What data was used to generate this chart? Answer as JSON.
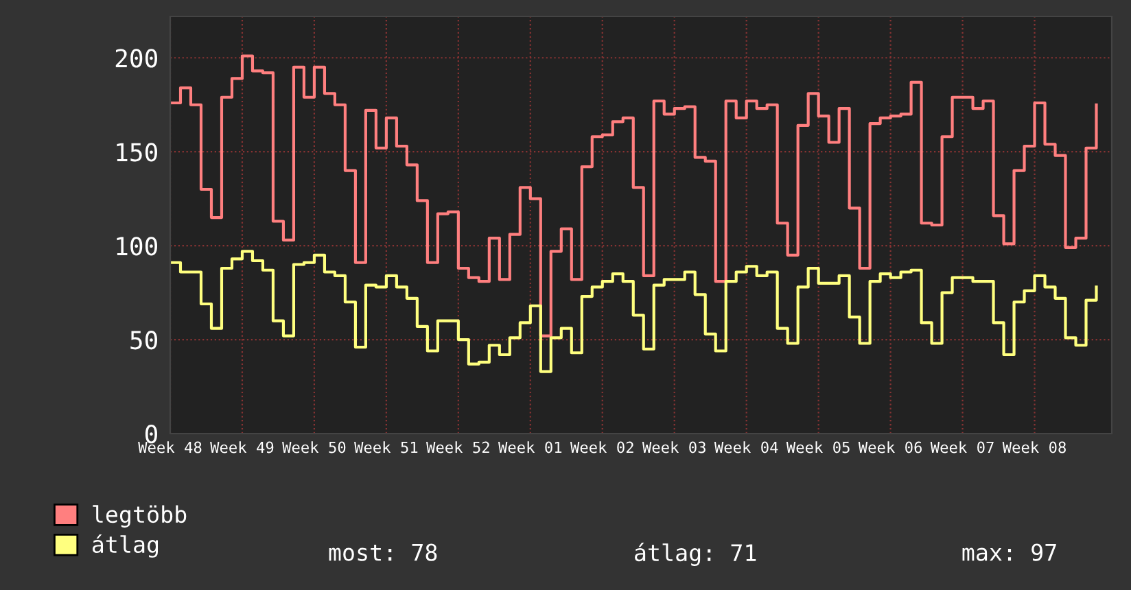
{
  "chart_data": {
    "type": "step",
    "categories": [
      "Week 48",
      null,
      null,
      null,
      null,
      null,
      null,
      "Week 49",
      null,
      null,
      null,
      null,
      null,
      null,
      "Week 50",
      null,
      null,
      null,
      null,
      null,
      null,
      "Week 51",
      null,
      null,
      null,
      null,
      null,
      null,
      "Week 52",
      null,
      null,
      null,
      null,
      null,
      null,
      "Week 01",
      null,
      null,
      null,
      null,
      null,
      null,
      "Week 02",
      null,
      null,
      null,
      null,
      null,
      null,
      "Week 03",
      null,
      null,
      null,
      null,
      null,
      null,
      "Week 04",
      null,
      null,
      null,
      null,
      null,
      null,
      "Week 05",
      null,
      null,
      null,
      null,
      null,
      null,
      "Week 06",
      null,
      null,
      null,
      null,
      null,
      null,
      "Week 07",
      null,
      null,
      null,
      null,
      null,
      null,
      "Week 08",
      null,
      null,
      null,
      null,
      null,
      null
    ],
    "series": [
      {
        "name": "legtöbb",
        "color": "#ff7f7f",
        "values": [
          176,
          184,
          175,
          130,
          115,
          179,
          189,
          201,
          193,
          192,
          113,
          103,
          195,
          179,
          195,
          181,
          175,
          140,
          91,
          172,
          152,
          168,
          153,
          143,
          124,
          91,
          117,
          118,
          88,
          83,
          81,
          104,
          82,
          106,
          131,
          125,
          52,
          97,
          109,
          82,
          142,
          158,
          159,
          166,
          168,
          131,
          84,
          177,
          170,
          173,
          174,
          147,
          145,
          81,
          177,
          168,
          177,
          173,
          175,
          112,
          95,
          164,
          181,
          169,
          155,
          173,
          120,
          88,
          165,
          168,
          169,
          170,
          187,
          112,
          111,
          158,
          179,
          179,
          173,
          177,
          116,
          101,
          140,
          153,
          176,
          154,
          148,
          99,
          104,
          152,
          175
        ]
      },
      {
        "name": "átlag",
        "color": "#ffff7f",
        "values": [
          91,
          86,
          86,
          69,
          56,
          88,
          93,
          97,
          92,
          87,
          60,
          52,
          90,
          91,
          95,
          86,
          84,
          70,
          46,
          79,
          78,
          84,
          78,
          72,
          57,
          44,
          60,
          60,
          50,
          37,
          38,
          47,
          42,
          51,
          59,
          68,
          33,
          51,
          56,
          43,
          73,
          78,
          81,
          85,
          81,
          63,
          45,
          79,
          82,
          82,
          86,
          74,
          53,
          44,
          81,
          86,
          89,
          84,
          86,
          56,
          48,
          78,
          88,
          80,
          80,
          84,
          62,
          48,
          81,
          85,
          83,
          86,
          87,
          59,
          48,
          75,
          83,
          83,
          81,
          81,
          59,
          42,
          70,
          76,
          84,
          78,
          72,
          51,
          47,
          71,
          78
        ]
      }
    ],
    "ylim": [
      0,
      222
    ],
    "yticks": [
      0,
      50,
      100,
      150,
      200
    ],
    "grid": true,
    "legend": "bottom left",
    "line_style": "solid",
    "annotations": [
      "most: 78",
      "átlag: 71",
      "max: 97"
    ]
  }
}
